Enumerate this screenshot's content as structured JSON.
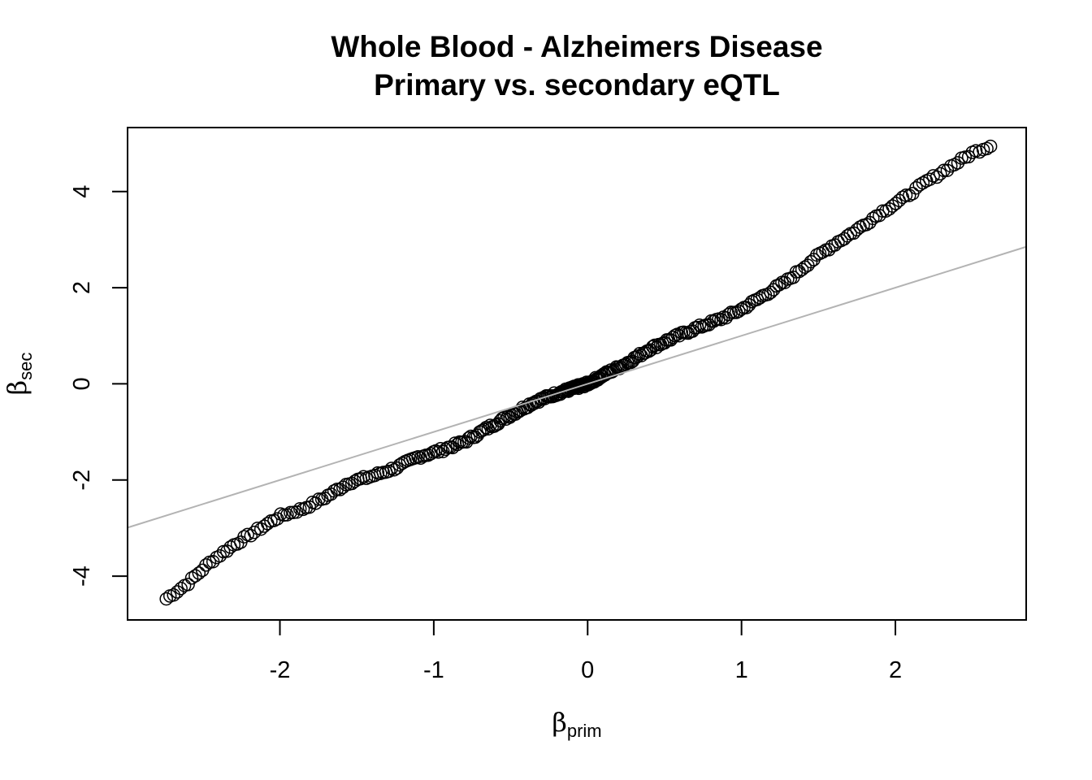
{
  "chart_data": {
    "type": "scatter",
    "title": "Whole Blood - Alzheimers Disease",
    "subtitle": "Primary vs. secondary eQTL",
    "xlabel": {
      "symbol": "β",
      "subscript": "prim"
    },
    "ylabel": {
      "symbol": "β",
      "subscript": "sec"
    },
    "xlim": [
      -2.99,
      2.85
    ],
    "ylim": [
      -4.91,
      5.33
    ],
    "x_ticks": [
      -2,
      -1,
      0,
      1,
      2
    ],
    "x_tick_labels": [
      "-2",
      "-1",
      "0",
      "1",
      "2"
    ],
    "y_ticks": [
      -4,
      -2,
      0,
      2,
      4
    ],
    "y_tick_labels": [
      "-4",
      "-2",
      "0",
      "2",
      "4"
    ],
    "grid": false,
    "legend": "none",
    "marker": "open-circle",
    "reference_line": {
      "intercept": 0,
      "slope": 1,
      "color": "#b3b3b3"
    },
    "points_keypoints": {
      "x": [
        -2.75,
        -2.6,
        -2.45,
        -2.3,
        -2.15,
        -2.0,
        -1.85,
        -1.7,
        -1.55,
        -1.4,
        -1.25,
        -1.1,
        -0.95,
        -0.8,
        -0.65,
        -0.5,
        -0.35,
        -0.2,
        -0.05,
        0.0,
        0.1,
        0.25,
        0.4,
        0.55,
        0.7,
        0.85,
        1.0,
        1.15,
        1.3,
        1.45,
        1.6,
        1.75,
        1.9,
        2.05,
        2.2,
        2.35,
        2.5,
        2.63
      ],
      "y": [
        -4.5,
        -4.15,
        -3.7,
        -3.35,
        -3.05,
        -2.75,
        -2.6,
        -2.35,
        -2.05,
        -1.92,
        -1.75,
        -1.52,
        -1.38,
        -1.2,
        -0.92,
        -0.65,
        -0.38,
        -0.2,
        -0.05,
        0.0,
        0.18,
        0.42,
        0.72,
        0.95,
        1.15,
        1.33,
        1.55,
        1.85,
        2.15,
        2.55,
        2.9,
        3.2,
        3.55,
        3.85,
        4.2,
        4.5,
        4.8,
        4.97
      ]
    },
    "n_points": 360
  }
}
